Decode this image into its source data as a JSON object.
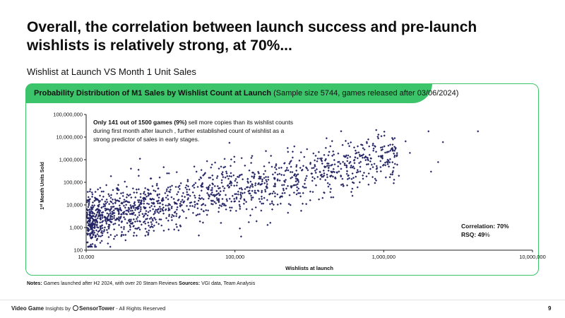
{
  "slide": {
    "title": "Overall, the correlation between launch success and pre-launch wishlists is relatively strong, at 70%...",
    "subtitle": "Wishlist at Launch VS Month 1 Unit Sales",
    "panel_title_bold": "Probability Distribution of M1 Sales by Wishlist Count at Launch",
    "panel_title_normal": " (Sample size 5744, games released after 03/06/2024)",
    "notes_label": "Notes:",
    "notes_text": " Games launched after H2 2024, with over 20 Steam Reviews ",
    "sources_label": "Sources:",
    "sources_text": " VGI data, Team Analysis",
    "footer_vg": "Video Game",
    "footer_insights": " Insights by ",
    "footer_sensortower": "SensorTower",
    "footer_rights": " - All Rights Reserved",
    "page_number": "9"
  },
  "colors": {
    "accent_green": "#3cc46a",
    "point_color": "#252566",
    "axis_color": "#222222"
  },
  "chart_data": {
    "type": "scatter",
    "xscale": "log",
    "yscale": "log",
    "xlim": [
      10000,
      10000000
    ],
    "ylim": [
      100,
      100000000
    ],
    "xlabel": "Wishlists at launch",
    "ylabel_pre": "1",
    "ylabel_sup": "st",
    "ylabel_post": " Month Units Sold",
    "x_ticks": [
      {
        "value": 10000,
        "label": "10,000"
      },
      {
        "value": 100000,
        "label": "100,000"
      },
      {
        "value": 1000000,
        "label": "1,000,000"
      },
      {
        "value": 10000000,
        "label": "10,000,000"
      }
    ],
    "y_ticks": [
      {
        "value": 100,
        "label": "100"
      },
      {
        "value": 1000,
        "label": "1,000"
      },
      {
        "value": 10000,
        "label": "10,000"
      },
      {
        "value": 100000,
        "label": "100,000"
      },
      {
        "value": 1000000,
        "label": "1,000,000"
      },
      {
        "value": 10000000,
        "label": "10,000,000"
      },
      {
        "value": 100000000,
        "label": "100,000,000"
      }
    ],
    "grid": false,
    "annotation": {
      "bold": "Only 141 out of 1500 games (9%)",
      "line1": " sell more copies than its wishlist counts",
      "line2": "during first month after launch , further established count of wishlist as a",
      "line3": "strong predictor of sales in early stages."
    },
    "stats": {
      "correlation_label": "Correlation: 70%",
      "rsq_label": "RSQ: ",
      "rsq_value": "49",
      "rsq_unit": "%"
    },
    "points_sample": [
      [
        10500,
        2000
      ],
      [
        12000,
        5000
      ],
      [
        15000,
        3000
      ],
      [
        20000,
        8000
      ],
      [
        25000,
        1500
      ],
      [
        30000,
        6000
      ],
      [
        40000,
        12000
      ],
      [
        50000,
        9000
      ],
      [
        60000,
        20000
      ],
      [
        70000,
        15000
      ],
      [
        80000,
        40000
      ],
      [
        100000,
        30000
      ],
      [
        120000,
        60000
      ],
      [
        150000,
        80000
      ],
      [
        200000,
        120000
      ],
      [
        250000,
        200000
      ],
      [
        300000,
        150000
      ],
      [
        400000,
        500000
      ],
      [
        500000,
        300000
      ],
      [
        700000,
        800000
      ],
      [
        1000000,
        600000
      ],
      [
        1500000,
        2000000
      ],
      [
        2000000,
        18000000
      ],
      [
        2500000,
        6000000
      ],
      [
        4300000,
        18000000
      ],
      [
        20000,
        400000
      ],
      [
        23000,
        1100000
      ],
      [
        110000,
        400
      ],
      [
        35000,
        250000
      ]
    ]
  }
}
